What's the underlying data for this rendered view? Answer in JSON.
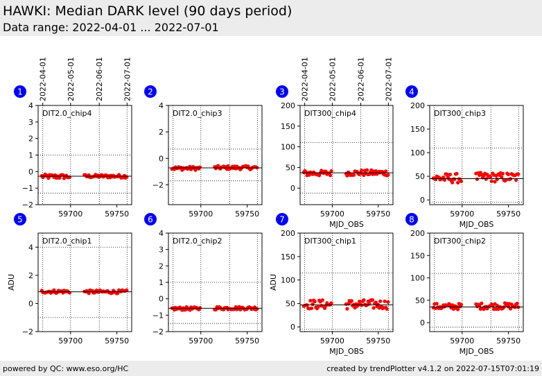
{
  "header": {
    "title": "HAWKI: Median DARK level (90 days period)",
    "subtitle": "Data range: 2022-04-01 ... 2022-07-01"
  },
  "footer": {
    "left": "powered by QC: www.eso.org/HC",
    "right": "created by trendPlotter v4.1.2 on 2022-07-15T07:01:19"
  },
  "date_ticks": [
    {
      "label": "2022-04-01",
      "mjd": 59670
    },
    {
      "label": "2022-05-01",
      "mjd": 59700
    },
    {
      "label": "2022-06-01",
      "mjd": 59731
    },
    {
      "label": "2022-07-01",
      "mjd": 59761
    }
  ],
  "colors": {
    "points": "#ff0000",
    "median_line": "#000000",
    "badge": "#0000ff",
    "band_title": "#ececec"
  },
  "chart_data": [
    {
      "type": "scatter",
      "number": "1",
      "label": "DIT2.0_chip4",
      "ylim": [
        -2,
        4
      ],
      "yticks": [
        -2,
        -1,
        0,
        1,
        2,
        3,
        4
      ],
      "xlim": [
        59665,
        59766
      ],
      "xticks": [
        59700,
        59750
      ],
      "median": -0.28,
      "hlines": [
        1.0,
        -1.3
      ],
      "xlabel": "",
      "ylabel": "",
      "date_axis": true,
      "series": [
        {
          "name": "",
          "segments": [
            {
              "start": 59669,
              "end": 59700,
              "center": -0.3,
              "spread": 0.14
            },
            {
              "start": 59715,
              "end": 59761,
              "center": -0.28,
              "spread": 0.1
            }
          ]
        }
      ]
    },
    {
      "type": "scatter",
      "number": "2",
      "label": "DIT2.0_chip3",
      "ylim": [
        -3.5,
        4
      ],
      "yticks": [
        -2,
        0,
        2,
        4
      ],
      "xlim": [
        59665,
        59766
      ],
      "xticks": [
        59700,
        59750
      ],
      "median": -0.72,
      "hlines": [
        0.7,
        -1.7
      ],
      "xlabel": "",
      "ylabel": "",
      "date_axis": false,
      "series": [
        {
          "name": "",
          "segments": [
            {
              "start": 59669,
              "end": 59700,
              "center": -0.75,
              "spread": 0.14
            },
            {
              "start": 59715,
              "end": 59761,
              "center": -0.7,
              "spread": 0.14
            }
          ]
        }
      ]
    },
    {
      "type": "scatter",
      "number": "3",
      "label": "DIT300_chip4",
      "ylim": [
        -40,
        200
      ],
      "yticks": [
        0,
        50,
        100,
        150,
        200
      ],
      "xlim": [
        59665,
        59766
      ],
      "xticks": [
        59700,
        59750
      ],
      "median": 37,
      "hlines": [
        110,
        -12
      ],
      "xlabel": "MJD_OBS",
      "ylabel": "",
      "date_axis": true,
      "series": [
        {
          "name": "",
          "segments": [
            {
              "start": 59669,
              "end": 59700,
              "center": 36,
              "spread": 7
            },
            {
              "start": 59715,
              "end": 59761,
              "center": 37,
              "spread": 7
            }
          ]
        }
      ]
    },
    {
      "type": "scatter",
      "number": "4",
      "label": "DIT300_chip3",
      "ylim": [
        -10,
        200
      ],
      "yticks": [
        0,
        50,
        100,
        150,
        200
      ],
      "xlim": [
        59665,
        59766
      ],
      "xticks": [
        59700,
        59750
      ],
      "median": 45,
      "hlines": [
        110,
        -5
      ],
      "xlabel": "MJD_OBS",
      "ylabel": "",
      "date_axis": false,
      "series": [
        {
          "name": "",
          "segments": [
            {
              "start": 59669,
              "end": 59700,
              "center": 46,
              "spread": 10
            },
            {
              "start": 59715,
              "end": 59761,
              "center": 48,
              "spread": 10
            }
          ]
        }
      ]
    },
    {
      "type": "scatter",
      "number": "5",
      "label": "DIT2.0_chip1",
      "ylim": [
        -2,
        5
      ],
      "yticks": [
        -2,
        0,
        2,
        4
      ],
      "xlim": [
        59665,
        59766
      ],
      "xticks": [
        59700,
        59750
      ],
      "median": 0.83,
      "hlines": [
        4.0,
        -1.0
      ],
      "xlabel": "",
      "ylabel": "ADU",
      "date_axis": false,
      "series": [
        {
          "name": "",
          "segments": [
            {
              "start": 59669,
              "end": 59700,
              "center": 0.85,
              "spread": 0.12
            },
            {
              "start": 59715,
              "end": 59761,
              "center": 0.83,
              "spread": 0.12
            }
          ]
        }
      ]
    },
    {
      "type": "scatter",
      "number": "6",
      "label": "DIT2.0_chip2",
      "ylim": [
        -2,
        4
      ],
      "yticks": [
        -2,
        -1,
        0,
        1,
        2,
        3,
        4
      ],
      "xlim": [
        59665,
        59766
      ],
      "xticks": [
        59700,
        59750
      ],
      "median": -0.58,
      "hlines": [
        1.0,
        -1.5
      ],
      "xlabel": "",
      "ylabel": "",
      "date_axis": false,
      "series": [
        {
          "name": "",
          "segments": [
            {
              "start": 59669,
              "end": 59700,
              "center": -0.6,
              "spread": 0.1
            },
            {
              "start": 59715,
              "end": 59761,
              "center": -0.57,
              "spread": 0.1
            }
          ]
        }
      ]
    },
    {
      "type": "scatter",
      "number": "7",
      "label": "DIT300_chip1",
      "ylim": [
        -10,
        200
      ],
      "yticks": [
        0,
        50,
        100,
        150,
        200
      ],
      "xlim": [
        59665,
        59766
      ],
      "xticks": [
        59700,
        59750
      ],
      "median": 47,
      "hlines": [
        115,
        -5
      ],
      "xlabel": "MJD_OBS",
      "ylabel": "ADU",
      "date_axis": false,
      "series": [
        {
          "name": "",
          "segments": [
            {
              "start": 59669,
              "end": 59700,
              "center": 48,
              "spread": 10
            },
            {
              "start": 59715,
              "end": 59761,
              "center": 48,
              "spread": 10
            }
          ]
        }
      ]
    },
    {
      "type": "scatter",
      "number": "8",
      "label": "DIT300_chip2",
      "ylim": [
        -20,
        200
      ],
      "yticks": [
        0,
        50,
        100,
        150,
        200
      ],
      "xlim": [
        59665,
        59766
      ],
      "xticks": [
        59700,
        59750
      ],
      "median": 35,
      "hlines": [
        110,
        -10
      ],
      "xlabel": "MJD_OBS",
      "ylabel": "",
      "date_axis": false,
      "series": [
        {
          "name": "",
          "segments": [
            {
              "start": 59669,
              "end": 59700,
              "center": 36,
              "spread": 7
            },
            {
              "start": 59715,
              "end": 59761,
              "center": 37,
              "spread": 7
            }
          ]
        }
      ]
    }
  ]
}
